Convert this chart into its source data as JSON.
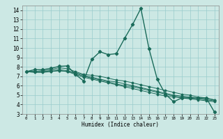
{
  "title": "",
  "xlabel": "Humidex (Indice chaleur)",
  "bg_color": "#cce8e4",
  "grid_color": "#99cccc",
  "line_color": "#1a6b5a",
  "xlim": [
    -0.5,
    23.5
  ],
  "ylim": [
    3,
    14.5
  ],
  "xticks": [
    0,
    1,
    2,
    3,
    4,
    5,
    6,
    7,
    8,
    9,
    10,
    11,
    12,
    13,
    14,
    15,
    16,
    17,
    18,
    19,
    20,
    21,
    22,
    23
  ],
  "yticks": [
    3,
    4,
    5,
    6,
    7,
    8,
    9,
    10,
    11,
    12,
    13,
    14
  ],
  "lines": [
    {
      "x": [
        0,
        1,
        2,
        3,
        4,
        5,
        6,
        7,
        8,
        9,
        10,
        11,
        12,
        13,
        14,
        15,
        16,
        17,
        18,
        19,
        20,
        21,
        22,
        23
      ],
      "y": [
        7.5,
        7.7,
        7.7,
        7.85,
        8.05,
        8.1,
        7.2,
        6.5,
        8.8,
        9.6,
        9.3,
        9.4,
        11.0,
        12.5,
        14.2,
        9.9,
        6.7,
        5.1,
        4.3,
        4.7,
        4.7,
        4.7,
        4.7,
        3.2
      ]
    },
    {
      "x": [
        0,
        1,
        2,
        3,
        4,
        5,
        6,
        7,
        8,
        9,
        10,
        11,
        12,
        13,
        14,
        15,
        16,
        17,
        18,
        19,
        20,
        21,
        22,
        23
      ],
      "y": [
        7.5,
        7.5,
        7.6,
        7.7,
        7.9,
        7.8,
        7.5,
        7.2,
        7.1,
        7.0,
        6.8,
        6.6,
        6.5,
        6.3,
        6.1,
        5.9,
        5.7,
        5.5,
        5.3,
        5.1,
        5.0,
        4.8,
        4.7,
        4.5
      ]
    },
    {
      "x": [
        0,
        1,
        2,
        3,
        4,
        5,
        6,
        7,
        8,
        9,
        10,
        11,
        12,
        13,
        14,
        15,
        16,
        17,
        18,
        19,
        20,
        21,
        22,
        23
      ],
      "y": [
        7.5,
        7.5,
        7.5,
        7.6,
        7.7,
        7.6,
        7.4,
        7.1,
        6.9,
        6.7,
        6.5,
        6.4,
        6.2,
        6.0,
        5.8,
        5.6,
        5.4,
        5.2,
        5.0,
        4.9,
        4.8,
        4.7,
        4.6,
        4.5
      ]
    },
    {
      "x": [
        0,
        1,
        2,
        3,
        4,
        5,
        6,
        7,
        8,
        9,
        10,
        11,
        12,
        13,
        14,
        15,
        16,
        17,
        18,
        19,
        20,
        21,
        22,
        23
      ],
      "y": [
        7.5,
        7.5,
        7.5,
        7.5,
        7.6,
        7.5,
        7.3,
        7.0,
        6.8,
        6.6,
        6.4,
        6.2,
        6.0,
        5.9,
        5.7,
        5.5,
        5.3,
        5.1,
        4.9,
        4.8,
        4.7,
        4.6,
        4.5,
        4.4
      ]
    },
    {
      "x": [
        0,
        1,
        2,
        3,
        4,
        5,
        6,
        7,
        8,
        9,
        10,
        11,
        12,
        13,
        14,
        15,
        16,
        17,
        18,
        19,
        20,
        21,
        22,
        23
      ],
      "y": [
        7.5,
        7.4,
        7.4,
        7.5,
        7.6,
        7.5,
        7.2,
        6.9,
        6.7,
        6.5,
        6.3,
        6.1,
        5.9,
        5.7,
        5.5,
        5.3,
        5.1,
        4.9,
        4.8,
        4.7,
        4.6,
        4.5,
        4.4,
        4.3
      ]
    }
  ]
}
